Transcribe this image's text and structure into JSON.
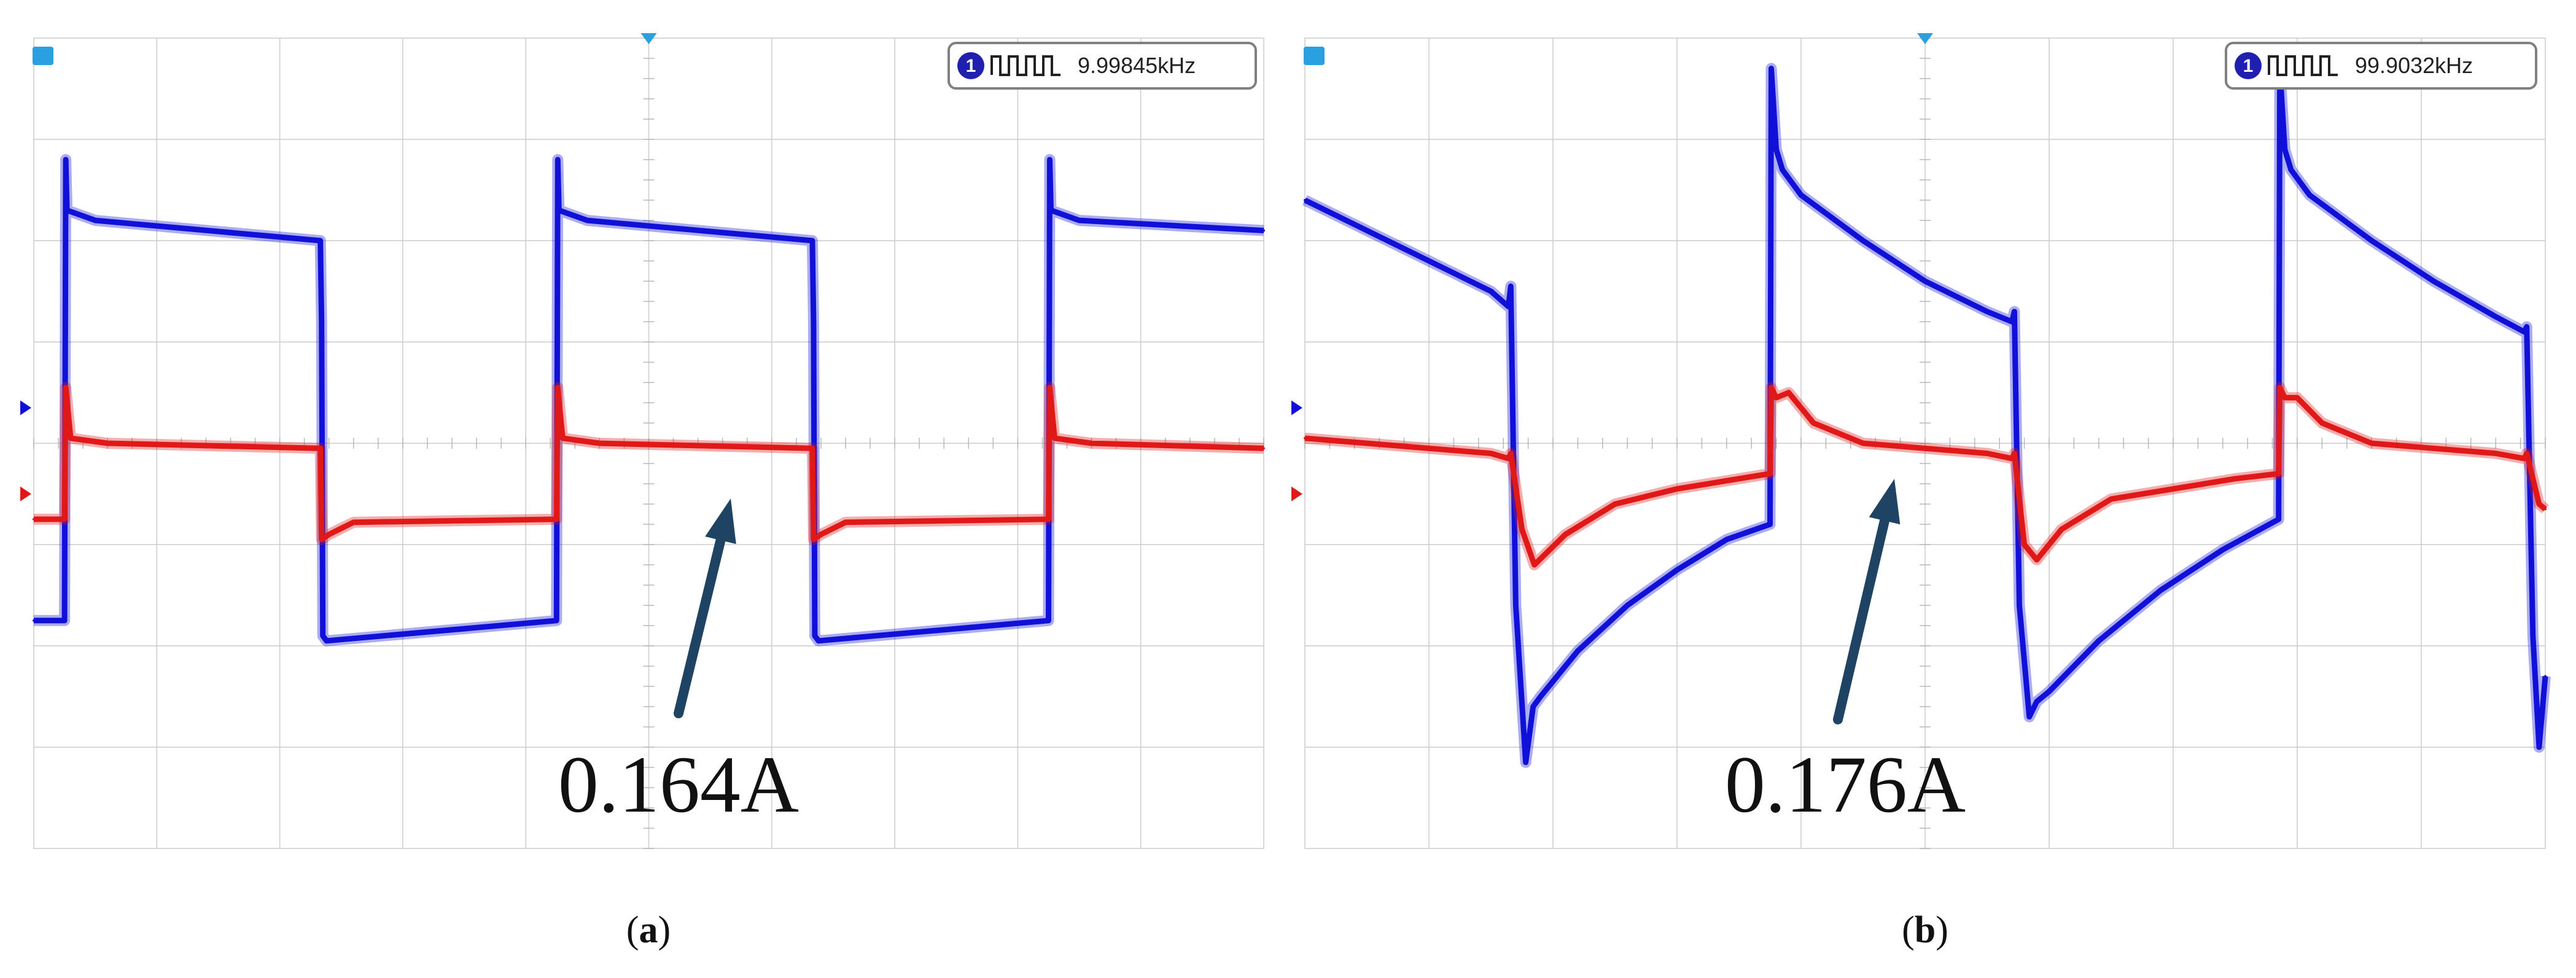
{
  "chart_data": [
    {
      "type": "line",
      "panel_label": "(a)",
      "panel_letter": "a",
      "frequency_readout": "9.99845kHz",
      "channel_badge": "1",
      "annotation": "0.164A",
      "grid": true,
      "x_divisions": 10,
      "y_divisions": 8,
      "xlim": [
        0,
        10
      ],
      "ylim": [
        -4,
        4
      ],
      "colors": {
        "ch1": "#1010d8",
        "ch2": "#e01818",
        "grid": "#cccccc",
        "arrow": "#1f4463",
        "marker_top": "#2aa0e0"
      },
      "series": [
        {
          "color": "#1010d8",
          "x": [
            0,
            0.25,
            0.26,
            0.27,
            0.5,
            2.33,
            2.34,
            2.35,
            2.38,
            4.25,
            4.26,
            4.27,
            4.5,
            6.33,
            6.34,
            6.35,
            6.38,
            8.25,
            8.26,
            8.27,
            8.5,
            10
          ],
          "y": [
            -1.75,
            -1.75,
            2.8,
            2.3,
            2.2,
            2.0,
            1.2,
            -1.9,
            -1.95,
            -1.75,
            2.8,
            2.3,
            2.2,
            2.0,
            1.2,
            -1.9,
            -1.95,
            -1.75,
            2.8,
            2.3,
            2.2,
            2.1
          ]
        },
        {
          "color": "#e01818",
          "x": [
            0,
            0.25,
            0.26,
            0.3,
            0.6,
            2.33,
            2.34,
            2.4,
            2.6,
            4.25,
            4.26,
            4.3,
            4.6,
            6.33,
            6.34,
            6.4,
            6.6,
            8.25,
            8.26,
            8.3,
            8.6,
            10
          ],
          "y": [
            -0.75,
            -0.75,
            0.55,
            0.05,
            0.0,
            -0.05,
            -0.95,
            -0.9,
            -0.78,
            -0.75,
            0.55,
            0.05,
            0.0,
            -0.05,
            -0.95,
            -0.9,
            -0.78,
            -0.75,
            0.55,
            0.05,
            0.0,
            -0.05
          ]
        }
      ]
    },
    {
      "type": "line",
      "panel_label": "(b)",
      "panel_letter": "b",
      "frequency_readout": "99.9032kHz",
      "channel_badge": "1",
      "annotation": "0.176A",
      "grid": true,
      "x_divisions": 10,
      "y_divisions": 8,
      "xlim": [
        0,
        10
      ],
      "ylim": [
        -4,
        4
      ],
      "colors": {
        "ch1": "#1010d8",
        "ch2": "#e01818",
        "grid": "#cccccc",
        "arrow": "#1f4463",
        "marker_top": "#2aa0e0"
      },
      "series": [
        {
          "color": "#1010d8",
          "x": [
            0,
            0.5,
            1.0,
            1.5,
            1.64,
            1.66,
            1.7,
            1.78,
            1.84,
            1.9,
            2.2,
            2.6,
            3.0,
            3.4,
            3.75,
            3.76,
            3.8,
            3.85,
            4.0,
            4.5,
            5.0,
            5.5,
            5.7,
            5.72,
            5.76,
            5.84,
            5.9,
            6.0,
            6.4,
            6.9,
            7.4,
            7.85,
            7.86,
            7.9,
            7.95,
            8.1,
            8.6,
            9.1,
            9.6,
            9.83,
            9.85,
            9.9,
            9.95,
            10
          ],
          "y": [
            2.4,
            2.1,
            1.8,
            1.5,
            1.35,
            1.55,
            -1.6,
            -3.15,
            -2.6,
            -2.5,
            -2.05,
            -1.6,
            -1.25,
            -0.95,
            -0.8,
            3.7,
            2.9,
            2.7,
            2.45,
            2.0,
            1.6,
            1.3,
            1.2,
            1.3,
            -1.6,
            -2.7,
            -2.55,
            -2.45,
            -1.95,
            -1.45,
            -1.05,
            -0.75,
            3.7,
            2.9,
            2.7,
            2.45,
            2.0,
            1.6,
            1.25,
            1.1,
            1.15,
            -1.9,
            -3.0,
            -2.3
          ]
        },
        {
          "color": "#e01818",
          "x": [
            0,
            0.5,
            1.0,
            1.5,
            1.64,
            1.66,
            1.75,
            1.85,
            2.1,
            2.5,
            3.0,
            3.5,
            3.75,
            3.76,
            3.8,
            3.9,
            4.1,
            4.5,
            5.0,
            5.5,
            5.7,
            5.72,
            5.8,
            5.9,
            6.1,
            6.5,
            7.0,
            7.5,
            7.85,
            7.86,
            7.9,
            8.0,
            8.2,
            8.6,
            9.1,
            9.6,
            9.83,
            9.85,
            9.95,
            10
          ],
          "y": [
            0.05,
            0.0,
            -0.05,
            -0.1,
            -0.15,
            -0.1,
            -0.85,
            -1.2,
            -0.9,
            -0.6,
            -0.45,
            -0.35,
            -0.3,
            0.55,
            0.45,
            0.5,
            0.2,
            0.0,
            -0.05,
            -0.1,
            -0.15,
            -0.1,
            -1.0,
            -1.15,
            -0.85,
            -0.55,
            -0.45,
            -0.35,
            -0.3,
            0.55,
            0.45,
            0.45,
            0.2,
            0.0,
            -0.05,
            -0.1,
            -0.15,
            -0.1,
            -0.6,
            -0.65
          ]
        }
      ]
    }
  ]
}
